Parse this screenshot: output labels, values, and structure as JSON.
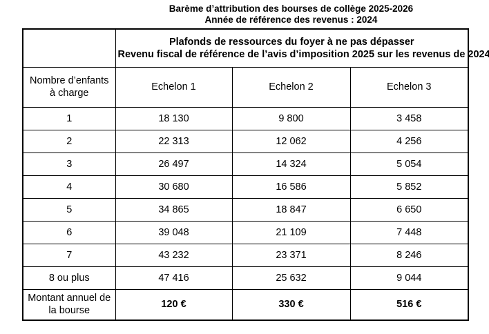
{
  "title": {
    "line1": "Barème d’attribution des bourses de collège 2025-2026",
    "line2": "Année de référence des revenus : 2024"
  },
  "table": {
    "header_span": {
      "line1": "Plafonds de ressources du foyer à ne pas dépasser",
      "line2": "Revenu fiscal de référence de l’avis d’imposition 2025 sur les revenus de 2024"
    },
    "columns": [
      "Nombre d’enfants à charge",
      "Echelon 1",
      "Echelon 2",
      "Echelon 3"
    ],
    "rows": [
      {
        "label": "1",
        "values": [
          "18 130",
          "9 800",
          "3 458"
        ]
      },
      {
        "label": "2",
        "values": [
          "22 313",
          "12 062",
          "4 256"
        ]
      },
      {
        "label": "3",
        "values": [
          "26 497",
          "14 324",
          "5 054"
        ]
      },
      {
        "label": "4",
        "values": [
          "30 680",
          "16 586",
          "5 852"
        ]
      },
      {
        "label": "5",
        "values": [
          "34 865",
          "18 847",
          "6 650"
        ]
      },
      {
        "label": "6",
        "values": [
          "39 048",
          "21 109",
          "7 448"
        ]
      },
      {
        "label": "7",
        "values": [
          "43 232",
          "23 371",
          "8 246"
        ]
      },
      {
        "label": "8 ou plus",
        "values": [
          "47 416",
          "25 632",
          "9 044"
        ]
      }
    ],
    "footer": {
      "label": "Montant annuel de la bourse",
      "values": [
        "120 €",
        "330 €",
        "516 €"
      ]
    }
  },
  "colors": {
    "text": "#000000",
    "border": "#000000",
    "background": "#ffffff"
  }
}
